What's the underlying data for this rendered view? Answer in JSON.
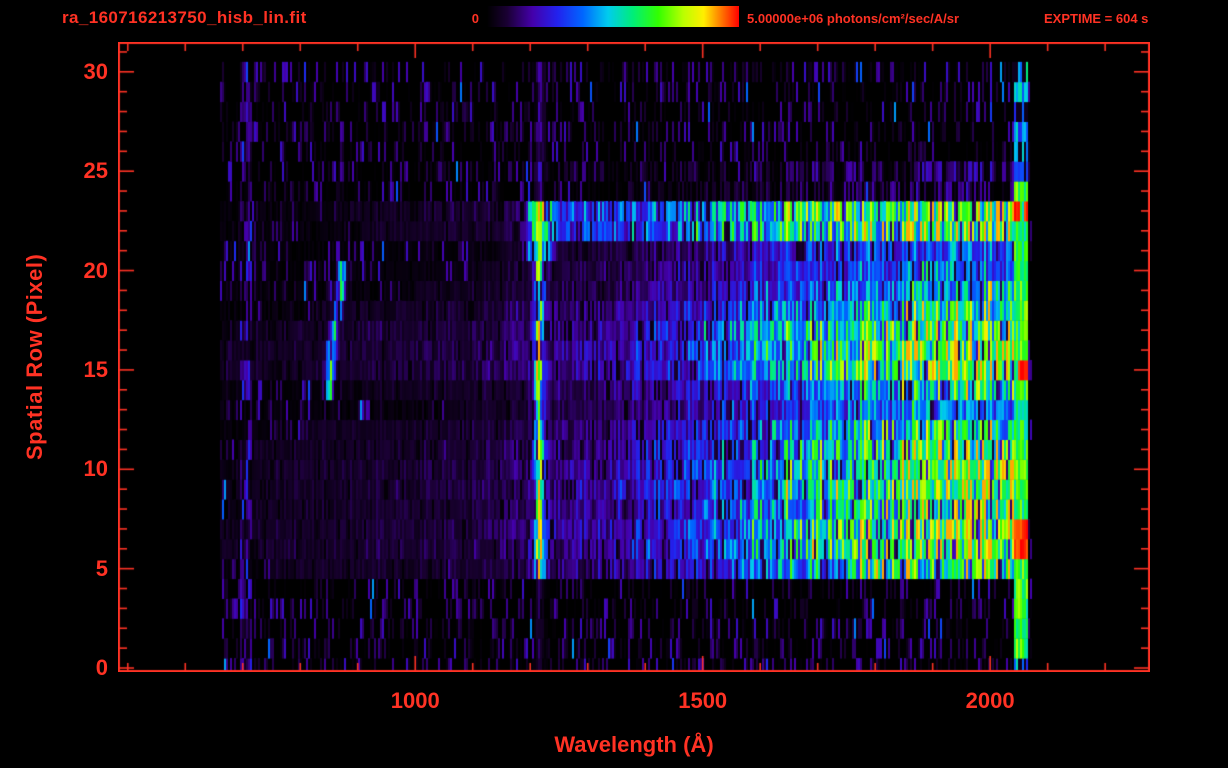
{
  "header": {
    "filename": "ra_160716213750_hisb_lin.fit",
    "colorbar_min_label": "0",
    "colorbar_max_label": "5.00000e+06 photons/cm²/sec/A/sr",
    "exptime_label": "EXPTIME = 604 s"
  },
  "colors": {
    "background": "#000000",
    "accent": "#ff3224"
  },
  "chart_data": {
    "type": "heatmap",
    "title": "ra_160716213750_hisb_lin.fit",
    "xlabel": "Wavelength (Å)",
    "ylabel": "Spatial Row (Pixel)",
    "xlim": [
      483,
      2278
    ],
    "ylim": [
      -0.2,
      31.5
    ],
    "x_major_ticks": [
      1000,
      1500,
      2000
    ],
    "x_minor_step": 100,
    "y_major_ticks": [
      0,
      5,
      10,
      15,
      20,
      25,
      30
    ],
    "y_minor_step": 1,
    "exposure_seconds": 604,
    "colorbar": {
      "min": 0,
      "max": 5000000,
      "min_label": "0",
      "max_label": "5.00000e+06",
      "units": "photons/cm²/sec/A/sr"
    },
    "colormap": [
      [
        0.0,
        "#000000"
      ],
      [
        0.08,
        "#1a0033"
      ],
      [
        0.18,
        "#4400aa"
      ],
      [
        0.28,
        "#2222ee"
      ],
      [
        0.38,
        "#0066ff"
      ],
      [
        0.48,
        "#00ccee"
      ],
      [
        0.58,
        "#00ee77"
      ],
      [
        0.68,
        "#33ff00"
      ],
      [
        0.78,
        "#bbff00"
      ],
      [
        0.86,
        "#ffee00"
      ],
      [
        0.93,
        "#ff7700"
      ],
      [
        1.0,
        "#ff0000"
      ]
    ],
    "image_model": {
      "seed": 20160716,
      "data_lambda_range": [
        660,
        2072
      ],
      "signal_row_range": [
        5,
        23
      ],
      "continuum_points": [
        [
          660,
          0.04
        ],
        [
          900,
          0.055
        ],
        [
          1100,
          0.07
        ],
        [
          1200,
          0.1
        ],
        [
          1300,
          0.13
        ],
        [
          1450,
          0.2
        ],
        [
          1600,
          0.33
        ],
        [
          1750,
          0.47
        ],
        [
          1900,
          0.56
        ],
        [
          2040,
          0.6
        ]
      ],
      "row_gain": {
        "5": 1.1,
        "6": 1.25,
        "7": 1.3,
        "8": 1.15,
        "9": 1.2,
        "10": 1.25,
        "11": 1.15,
        "12": 1.0,
        "13": 0.75,
        "14": 0.9,
        "15": 1.25,
        "16": 1.3,
        "17": 1.2,
        "18": 1.0,
        "19": 0.8,
        "20": 0.7,
        "21": 0.6,
        "22": 0.9,
        "23": 0.95
      },
      "emission_line": {
        "center": 1216,
        "sigma": 7,
        "amplitude": 0.55,
        "wide_rows_sigma_scale": 1.9
      },
      "line_row_gain": {
        "5": 1.05,
        "6": 1.2,
        "7": 1.15,
        "8": 1.0,
        "21": 1.1,
        "22": 1.35,
        "23": 1.25
      },
      "hook": {
        "rows": [
          14,
          15,
          16,
          17,
          18,
          19,
          20
        ],
        "centers": [
          851,
          852,
          855,
          860,
          866,
          870,
          872
        ],
        "amplitudes": [
          0.5,
          0.65,
          0.6,
          0.45,
          0.38,
          0.45,
          0.55
        ],
        "sigma": 5
      },
      "cyan_band": {
        "rows": [
          22,
          23
        ],
        "lambda_range": [
          1230,
          2040
        ],
        "amplitude": 0.17
      },
      "left_strip": {
        "lambda_range": [
          695,
          716
        ],
        "amplitude": 0.14
      },
      "right_edge": {
        "lambda_range": [
          2042,
          2066
        ],
        "row_range": [
          1,
          24
        ],
        "amplitude": 0.55,
        "red_rows": [
          6,
          7,
          15,
          23
        ]
      },
      "faint_rows": [
        24,
        25
      ],
      "noise": {
        "min_factor": 0.55,
        "span": 0.85,
        "dropout_prob": 0.1,
        "column_factor_min": 0.75,
        "column_factor_span": 0.55
      },
      "speckle": {
        "probability": 0.42,
        "max": 0.22
      }
    }
  }
}
